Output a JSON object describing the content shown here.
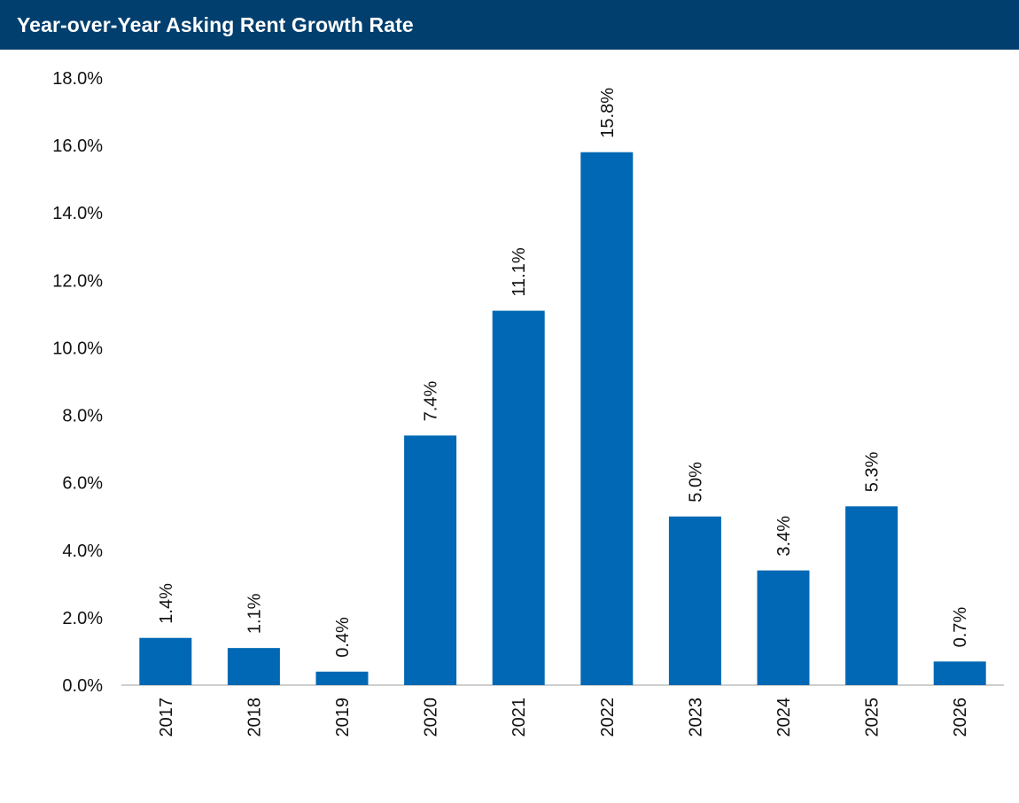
{
  "title": "Year-over-Year Asking Rent Growth Rate",
  "colors": {
    "header_bg": "#003f6e",
    "header_text": "#ffffff",
    "bar": "#0068b4",
    "axis": "#bfbfbf"
  },
  "chart_data": {
    "type": "bar",
    "title": "Year-over-Year Asking Rent Growth Rate",
    "xlabel": "",
    "ylabel": "",
    "categories": [
      "2017",
      "2018",
      "2019",
      "2020",
      "2021",
      "2022",
      "2023",
      "2024",
      "2025",
      "2026"
    ],
    "values": [
      1.4,
      1.1,
      0.4,
      7.4,
      11.1,
      15.8,
      5.0,
      3.4,
      5.3,
      0.7
    ],
    "value_labels": [
      "1.4%",
      "1.1%",
      "0.4%",
      "7.4%",
      "11.1%",
      "15.8%",
      "5.0%",
      "3.4%",
      "5.3%",
      "0.7%"
    ],
    "ylim": [
      0,
      18
    ],
    "yticks": [
      0,
      2,
      4,
      6,
      8,
      10,
      12,
      14,
      16,
      18
    ],
    "ytick_labels": [
      "0.0%",
      "2.0%",
      "4.0%",
      "6.0%",
      "8.0%",
      "10.0%",
      "12.0%",
      "14.0%",
      "16.0%",
      "18.0%"
    ],
    "grid": false,
    "legend": "none"
  }
}
